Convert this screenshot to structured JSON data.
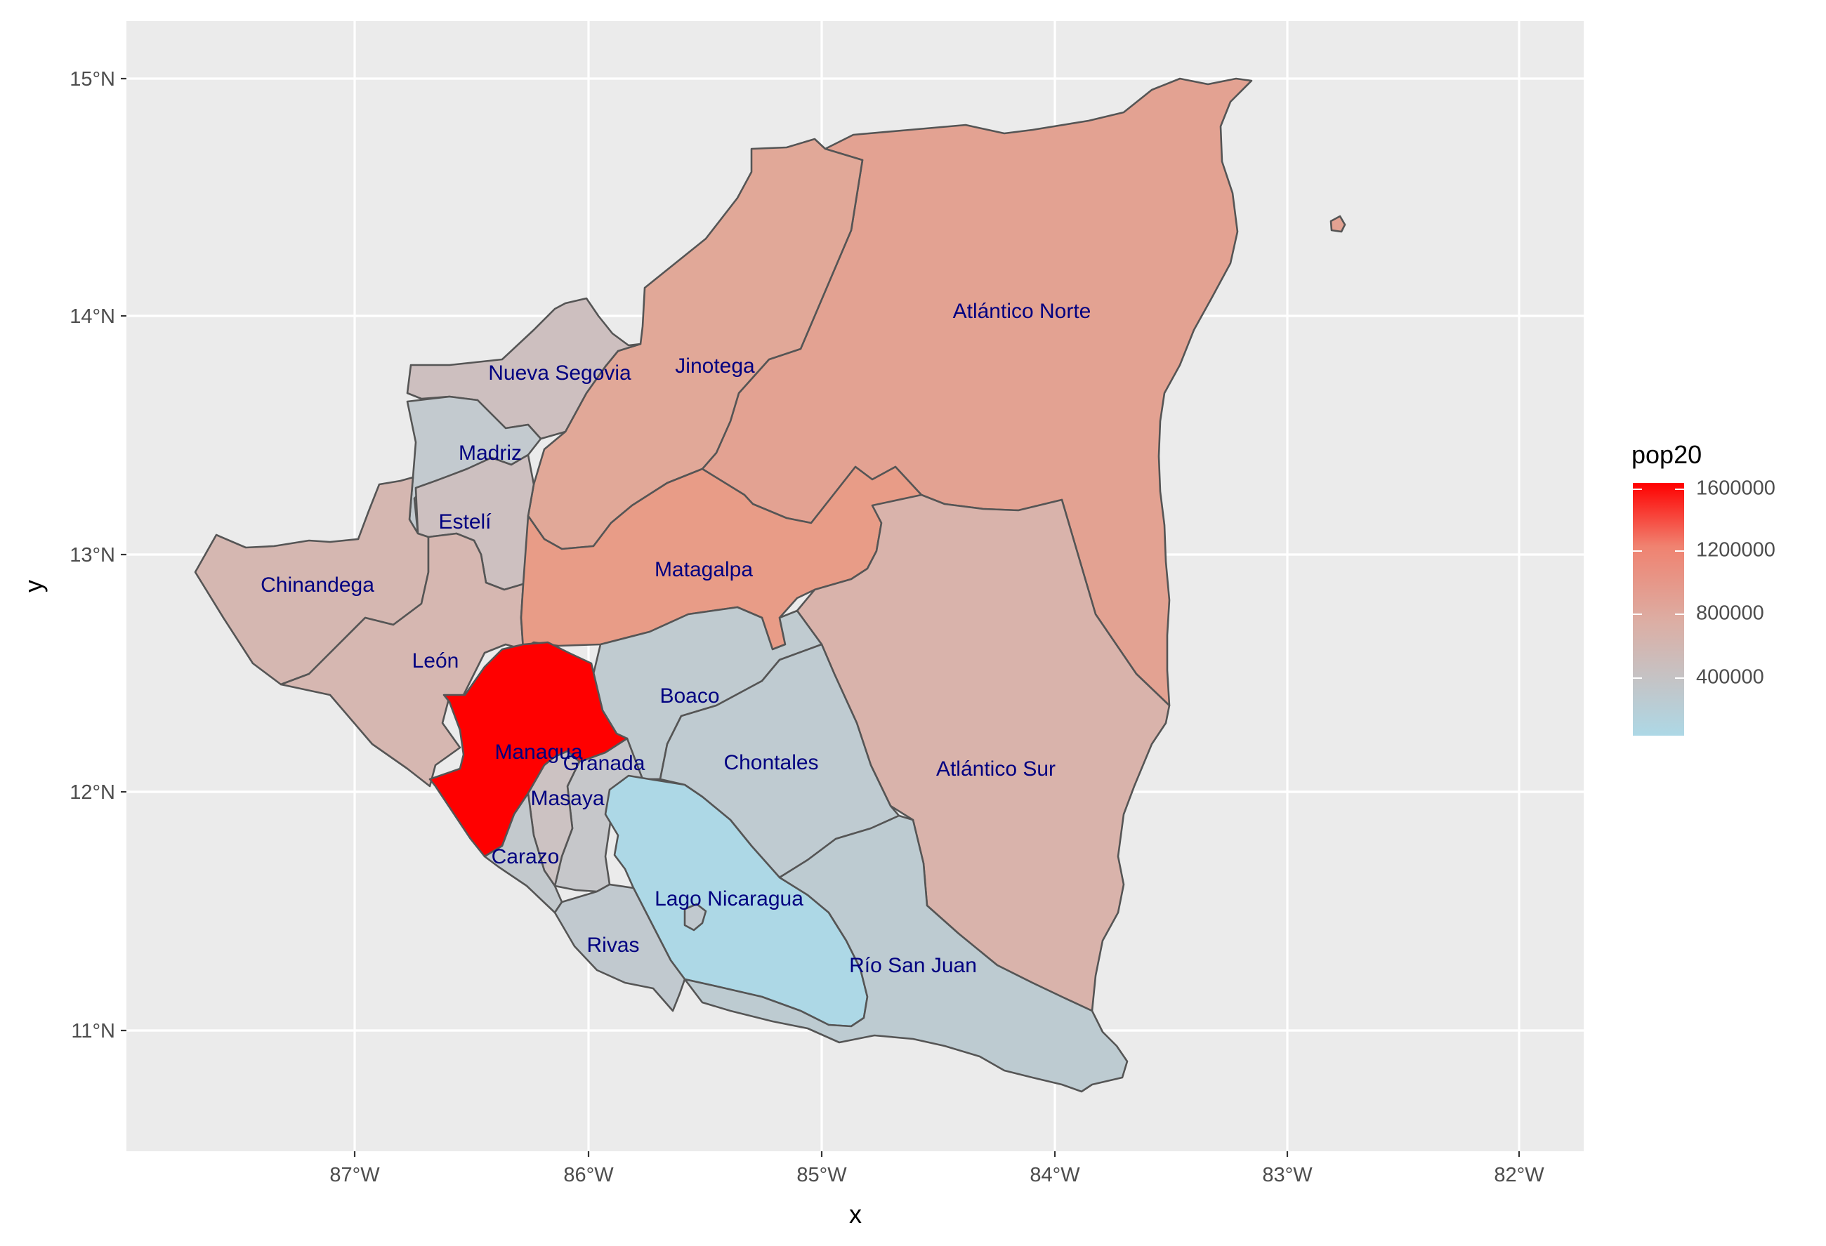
{
  "map": {
    "x_axis_title": "x",
    "y_axis_title": "y",
    "x_ticks": [
      "87°W",
      "86°W",
      "85°W",
      "84°W",
      "83°W",
      "82°W"
    ],
    "y_ticks": [
      "15°N",
      "14°N",
      "13°N",
      "12°N",
      "11°N"
    ],
    "fill_low_color": "#add8e6",
    "fill_high_color": "#ff0000",
    "border_color": "#555555",
    "label_color": "#000080",
    "panel_background": "#ebebeb"
  },
  "legend": {
    "title": "pop20",
    "labels": [
      "1600000",
      "1200000",
      "800000",
      "400000"
    ]
  },
  "regions": [
    {
      "name": "Atlántico Norte",
      "color": "#e3a292"
    },
    {
      "name": "Jinotega",
      "color": "#e1a898"
    },
    {
      "name": "Nueva Segovia",
      "color": "#cdbfbf"
    },
    {
      "name": "Madriz",
      "color": "#c3cacf"
    },
    {
      "name": "Estelí",
      "color": "#cdc0c0"
    },
    {
      "name": "Chinandega",
      "color": "#d5b7b1"
    },
    {
      "name": "León",
      "color": "#d6b7b1"
    },
    {
      "name": "Matagalpa",
      "color": "#e89c87"
    },
    {
      "name": "Atlántico Sur",
      "color": "#d9b3ab"
    },
    {
      "name": "Boaco",
      "color": "#c0cbd0"
    },
    {
      "name": "Managua",
      "color": "#ff0000"
    },
    {
      "name": "Granada",
      "color": "#c6c7ca"
    },
    {
      "name": "Masaya",
      "color": "#ccc2c2"
    },
    {
      "name": "Carazo",
      "color": "#c3c9cd"
    },
    {
      "name": "Chontales",
      "color": "#bfcbd1"
    },
    {
      "name": "Lago Nicaragua",
      "color": "#add8e6"
    },
    {
      "name": "Rivas",
      "color": "#c1c9cf"
    },
    {
      "name": "Río San Juan",
      "color": "#bdcbd1"
    }
  ]
}
